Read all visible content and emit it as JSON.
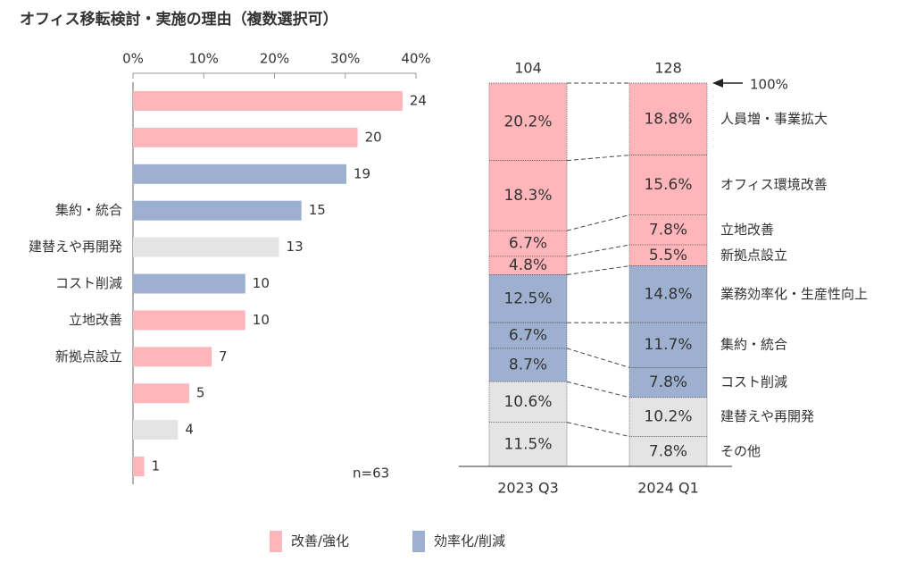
{
  "title": "オフィス移転検討・実施の理由（複数選択可）",
  "legend": [
    {
      "name": "改善/強化",
      "color": "#ffb6bb"
    },
    {
      "name": "効率化/削減",
      "color": "#9db0cf"
    }
  ],
  "chart_data": [
    {
      "type": "hbar",
      "categories": [
        null,
        null,
        null,
        "集約・統合",
        "建替えや再開発",
        "コスト削減",
        "立地改善",
        "新拠点設立",
        null,
        null,
        null
      ],
      "values": [
        24,
        20,
        19,
        15,
        13,
        10,
        10,
        7,
        5,
        4,
        1
      ],
      "colors": [
        "#ffb6bb",
        "#ffb6bb",
        "#9db0cf",
        "#9db0cf",
        "#e4e4e4",
        "#9db0cf",
        "#ffb6bb",
        "#ffb6bb",
        "#ffb6bb",
        "#e4e4e4",
        "#ffb6bb"
      ],
      "xlim": [
        0,
        25.2
      ],
      "xticks": [
        {
          "value": 0,
          "label": "0%"
        },
        {
          "value": 6.3,
          "label": "10%"
        },
        {
          "value": 12.6,
          "label": "20%"
        },
        {
          "value": 18.9,
          "label": "30%"
        },
        {
          "value": 25.2,
          "label": "40%"
        }
      ],
      "annotation": "n=63"
    },
    {
      "type": "stacked100",
      "categories": [
        "2023 Q3",
        "2024 Q1"
      ],
      "totals": [
        104,
        128
      ],
      "ylim": [
        0,
        100
      ],
      "annotation": "100%",
      "series": [
        {
          "name": "人員増・事業拡大",
          "color": "#ffb6bb",
          "values": [
            20.2,
            18.8
          ],
          "value_labels": [
            "20.2%",
            "18.8%"
          ]
        },
        {
          "name": "オフィス環境改善",
          "color": "#ffb6bb",
          "values": [
            18.3,
            15.6
          ],
          "value_labels": [
            "18.3%",
            "15.6%"
          ]
        },
        {
          "name": "立地改善",
          "color": "#ffb6bb",
          "values": [
            6.7,
            7.8
          ],
          "value_labels": [
            "6.7%",
            "7.8%"
          ]
        },
        {
          "name": "新拠点設立",
          "color": "#ffb6bb",
          "values": [
            4.8,
            5.5
          ],
          "value_labels": [
            "4.8%",
            "5.5%"
          ]
        },
        {
          "name": "業務効率化・生産性向上",
          "color": "#9db0cf",
          "values": [
            12.5,
            14.8
          ],
          "value_labels": [
            "12.5%",
            "14.8%"
          ]
        },
        {
          "name": "集約・統合",
          "color": "#9db0cf",
          "values": [
            6.7,
            11.7
          ],
          "value_labels": [
            "6.7%",
            "11.7%"
          ]
        },
        {
          "name": "コスト削減",
          "color": "#9db0cf",
          "values": [
            8.7,
            7.8
          ],
          "value_labels": [
            "8.7%",
            "7.8%"
          ]
        },
        {
          "name": "建替えや再開発",
          "color": "#e4e4e4",
          "values": [
            10.6,
            10.2
          ],
          "value_labels": [
            "10.6%",
            "10.2%"
          ]
        },
        {
          "name": "その他",
          "color": "#e4e4e4",
          "values": [
            11.5,
            7.8
          ],
          "value_labels": [
            "11.5%",
            "7.8%"
          ]
        }
      ]
    }
  ]
}
